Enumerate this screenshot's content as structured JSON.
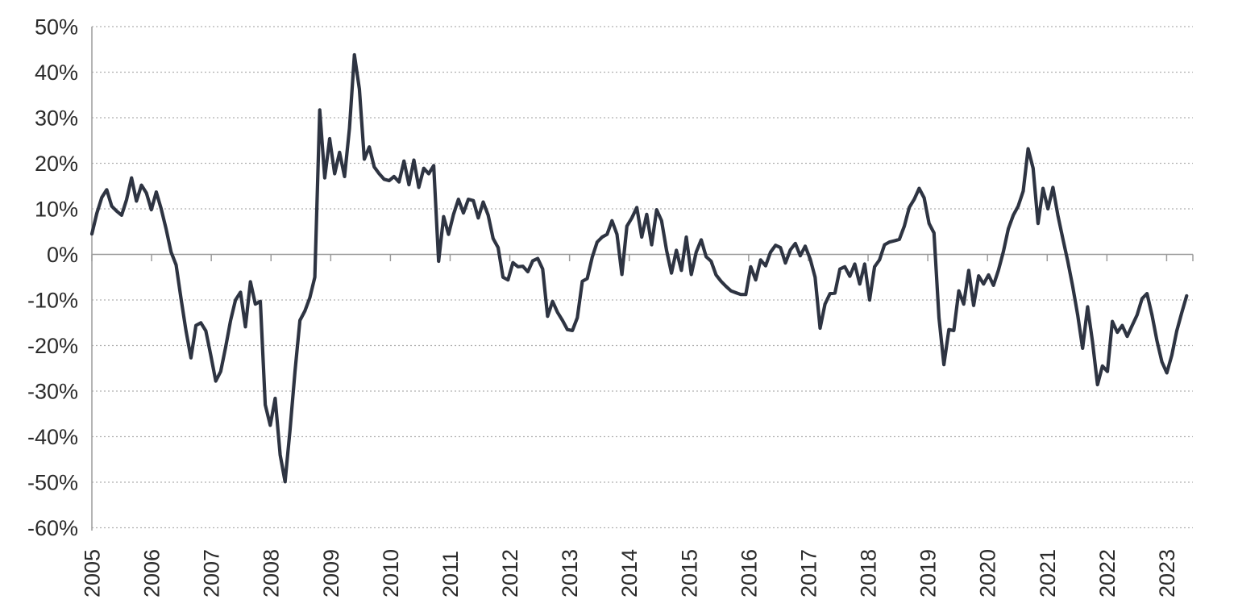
{
  "page": {
    "background": "#ffffff"
  },
  "chart_data": {
    "type": "line",
    "title": "",
    "xlabel": "",
    "ylabel": "",
    "frequency": "monthly",
    "x_start": "2005-01",
    "x_end": "2023-05",
    "x_tick_labels": [
      "2005",
      "2006",
      "2007",
      "2008",
      "2009",
      "2010",
      "2011",
      "2012",
      "2013",
      "2014",
      "2015",
      "2016",
      "2017",
      "2018",
      "2019",
      "2020",
      "2021",
      "2022",
      "2023"
    ],
    "y_tick_labels": [
      "50%",
      "40%",
      "30%",
      "20%",
      "10%",
      "0%",
      "-10%",
      "-20%",
      "-30%",
      "-40%",
      "-50%",
      "-60%"
    ],
    "y_tick_values": [
      50,
      40,
      30,
      20,
      10,
      0,
      -10,
      -20,
      -30,
      -40,
      -50,
      -60
    ],
    "ylim": [
      -60,
      50
    ],
    "y_unit": "%",
    "grid": {
      "horizontal": "dotted",
      "vertical": "none",
      "zero_line": "solid"
    },
    "legend": "none",
    "colors": {
      "line": "#2e3442",
      "grid": "#b0b0b0",
      "axis": "#9c9c9c",
      "label": "#2b2b2b"
    },
    "series": [
      {
        "name": "",
        "values": [
          4.5,
          9.0,
          12.5,
          14.2,
          10.6,
          9.5,
          8.6,
          12.0,
          16.8,
          11.7,
          15.2,
          13.5,
          9.8,
          13.7,
          10.0,
          5.5,
          0.5,
          -2.3,
          -9.7,
          -16.8,
          -22.7,
          -15.6,
          -15.0,
          -16.8,
          -22.1,
          -27.8,
          -25.7,
          -20.4,
          -14.5,
          -10.0,
          -8.3,
          -15.9,
          -6.0,
          -10.9,
          -10.3,
          -33.0,
          -37.5,
          -31.6,
          -44.0,
          -49.9,
          -38.6,
          -25.7,
          -14.5,
          -12.4,
          -9.5,
          -5.0,
          31.7,
          16.8,
          25.4,
          17.7,
          22.4,
          17.1,
          27.7,
          43.8,
          36.3,
          20.9,
          23.6,
          19.2,
          17.7,
          16.5,
          16.2,
          17.1,
          15.9,
          20.5,
          15.3,
          20.7,
          14.7,
          18.9,
          17.7,
          19.5,
          -1.5,
          8.3,
          4.4,
          8.8,
          12.1,
          9.1,
          12.1,
          11.8,
          8.0,
          11.5,
          8.6,
          3.5,
          1.5,
          -5.0,
          -5.6,
          -1.8,
          -2.7,
          -2.6,
          -3.8,
          -1.4,
          -0.9,
          -3.2,
          -13.6,
          -10.3,
          -12.7,
          -14.5,
          -16.5,
          -16.7,
          -13.9,
          -5.9,
          -5.3,
          -0.6,
          2.7,
          3.8,
          4.4,
          7.4,
          4.4,
          -4.4,
          6.2,
          8.0,
          10.3,
          3.8,
          8.8,
          2.1,
          9.8,
          7.4,
          0.9,
          -4.1,
          0.9,
          -3.5,
          3.8,
          -4.4,
          0.5,
          3.2,
          -0.5,
          -1.5,
          -4.5,
          -5.9,
          -7.0,
          -8.0,
          -8.4,
          -8.8,
          -8.8,
          -2.7,
          -5.6,
          -1.2,
          -2.5,
          0.5,
          2.0,
          1.5,
          -1.9,
          1.0,
          2.4,
          -0.3,
          1.8,
          -1.0,
          -5.0,
          -16.2,
          -10.9,
          -8.6,
          -8.5,
          -3.2,
          -2.7,
          -4.8,
          -2.1,
          -6.5,
          -2.1,
          -10.0,
          -2.7,
          -1.2,
          2.1,
          2.7,
          3.0,
          3.3,
          6.2,
          10.3,
          12.1,
          14.5,
          12.4,
          6.8,
          4.7,
          -13.9,
          -24.2,
          -16.5,
          -16.7,
          -8.0,
          -10.9,
          -3.5,
          -11.2,
          -4.7,
          -6.5,
          -4.5,
          -6.8,
          -3.5,
          0.6,
          5.6,
          8.6,
          10.6,
          13.9,
          23.2,
          18.9,
          6.8,
          14.5,
          10.0,
          14.7,
          8.6,
          3.5,
          -1.5,
          -7.0,
          -13.3,
          -20.6,
          -11.5,
          -19.2,
          -28.6,
          -24.5,
          -25.7,
          -14.7,
          -17.1,
          -15.6,
          -18.0,
          -15.6,
          -13.3,
          -9.7,
          -8.6,
          -13.3,
          -18.9,
          -23.6,
          -26.0,
          -22.1,
          -16.8,
          -12.8,
          -9.1
        ]
      }
    ]
  }
}
